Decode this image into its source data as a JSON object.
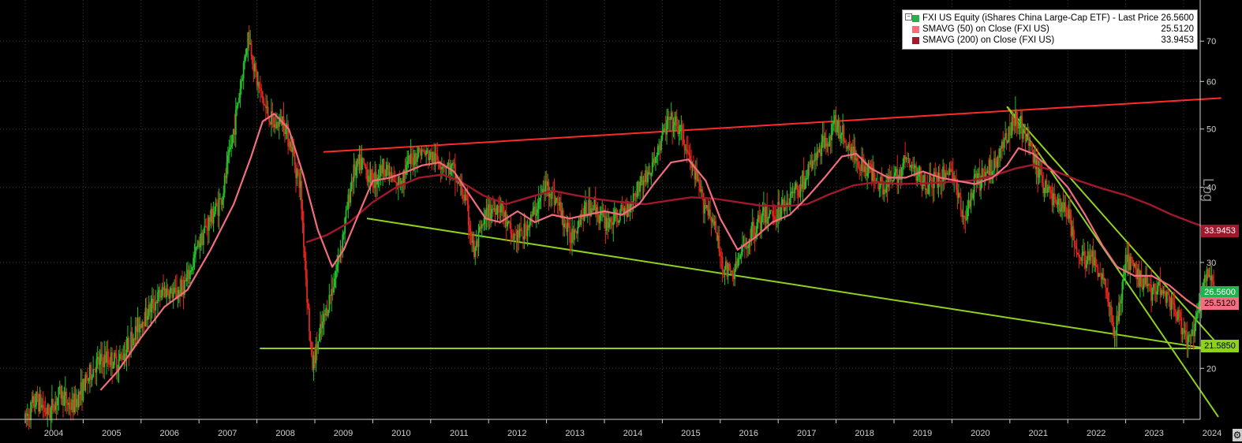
{
  "chart_data": {
    "type": "candlestick",
    "scale": "log",
    "ylim": [
      16.5,
      80
    ],
    "y_ticks": [
      20,
      30,
      40,
      50,
      60,
      70
    ],
    "y_tick_labels": [
      "20",
      "30",
      "40",
      "50",
      "60",
      "70"
    ],
    "ylabel": "Log",
    "x_ticks": [
      "2004",
      "2005",
      "2006",
      "2007",
      "2008",
      "2009",
      "2010",
      "2011",
      "2012",
      "2013",
      "2014",
      "2015",
      "2016",
      "2017",
      "2018",
      "2019",
      "2020",
      "2021",
      "2022",
      "2023",
      "2024"
    ],
    "xlim": [
      2004.0,
      2024.65
    ],
    "grid": true,
    "legend_position": "top-right",
    "legend": [
      {
        "label": "FXI US Equity (iShares China Large-Cap ETF) - Last Price",
        "value": "26.5600",
        "color": "#22b14c"
      },
      {
        "label": "SMAVG (50)  on Close (FXI US)",
        "value": "25.5120",
        "color": "#f26d7d"
      },
      {
        "label": "SMAVG (200)  on Close (FXI US)",
        "value": "33.9453",
        "color": "#a0182b"
      }
    ],
    "price_series": {
      "name": "FXI US Equity (iShares China Large-Cap ETF) - Last Price",
      "points": [
        [
          2004.0,
          16.5
        ],
        [
          2004.2,
          17.8
        ],
        [
          2004.4,
          16.8
        ],
        [
          2004.6,
          18.2
        ],
        [
          2004.8,
          17.2
        ],
        [
          2005.0,
          18.6
        ],
        [
          2005.2,
          20.2
        ],
        [
          2005.4,
          20.8
        ],
        [
          2005.6,
          20.5
        ],
        [
          2005.8,
          22.0
        ],
        [
          2006.0,
          24.0
        ],
        [
          2006.2,
          25.5
        ],
        [
          2006.4,
          27.0
        ],
        [
          2006.6,
          26.5
        ],
        [
          2006.8,
          28.0
        ],
        [
          2007.0,
          32.5
        ],
        [
          2007.2,
          35.5
        ],
        [
          2007.4,
          38.5
        ],
        [
          2007.6,
          50.0
        ],
        [
          2007.75,
          62.0
        ],
        [
          2007.85,
          72.0
        ],
        [
          2008.0,
          60.0
        ],
        [
          2008.15,
          54.0
        ],
        [
          2008.3,
          50.5
        ],
        [
          2008.45,
          52.0
        ],
        [
          2008.6,
          46.5
        ],
        [
          2008.75,
          40.0
        ],
        [
          2008.85,
          28.0
        ],
        [
          2008.95,
          20.0
        ],
        [
          2009.05,
          22.0
        ],
        [
          2009.2,
          25.0
        ],
        [
          2009.35,
          28.5
        ],
        [
          2009.5,
          34.0
        ],
        [
          2009.65,
          42.0
        ],
        [
          2009.8,
          44.0
        ],
        [
          2010.0,
          41.0
        ],
        [
          2010.2,
          43.5
        ],
        [
          2010.4,
          40.0
        ],
        [
          2010.6,
          43.5
        ],
        [
          2010.8,
          46.0
        ],
        [
          2011.0,
          45.0
        ],
        [
          2011.2,
          44.0
        ],
        [
          2011.4,
          42.5
        ],
        [
          2011.6,
          38.0
        ],
        [
          2011.75,
          31.0
        ],
        [
          2011.9,
          34.5
        ],
        [
          2012.0,
          36.5
        ],
        [
          2012.2,
          37.5
        ],
        [
          2012.4,
          33.0
        ],
        [
          2012.6,
          33.5
        ],
        [
          2012.8,
          36.5
        ],
        [
          2013.0,
          40.5
        ],
        [
          2013.2,
          37.5
        ],
        [
          2013.4,
          33.0
        ],
        [
          2013.6,
          36.0
        ],
        [
          2013.8,
          37.5
        ],
        [
          2014.0,
          35.0
        ],
        [
          2014.2,
          35.5
        ],
        [
          2014.4,
          37.0
        ],
        [
          2014.6,
          40.5
        ],
        [
          2014.8,
          42.5
        ],
        [
          2015.0,
          48.5
        ],
        [
          2015.1,
          51.5
        ],
        [
          2015.3,
          50.0
        ],
        [
          2015.5,
          43.5
        ],
        [
          2015.7,
          38.0
        ],
        [
          2015.85,
          36.0
        ],
        [
          2016.05,
          29.5
        ],
        [
          2016.2,
          28.5
        ],
        [
          2016.4,
          31.5
        ],
        [
          2016.6,
          34.5
        ],
        [
          2016.8,
          36.0
        ],
        [
          2017.0,
          36.5
        ],
        [
          2017.2,
          38.5
        ],
        [
          2017.4,
          40.5
        ],
        [
          2017.6,
          44.0
        ],
        [
          2017.8,
          47.5
        ],
        [
          2018.0,
          51.0
        ],
        [
          2018.2,
          47.0
        ],
        [
          2018.4,
          44.0
        ],
        [
          2018.6,
          42.5
        ],
        [
          2018.8,
          40.5
        ],
        [
          2019.0,
          41.0
        ],
        [
          2019.2,
          44.5
        ],
        [
          2019.4,
          42.0
        ],
        [
          2019.6,
          40.5
        ],
        [
          2019.8,
          41.5
        ],
        [
          2020.0,
          43.0
        ],
        [
          2020.2,
          35.0
        ],
        [
          2020.4,
          40.5
        ],
        [
          2020.6,
          42.0
        ],
        [
          2020.8,
          45.0
        ],
        [
          2021.0,
          50.0
        ],
        [
          2021.1,
          53.0
        ],
        [
          2021.3,
          48.0
        ],
        [
          2021.5,
          42.0
        ],
        [
          2021.7,
          39.0
        ],
        [
          2021.9,
          37.0
        ],
        [
          2022.0,
          36.5
        ],
        [
          2022.1,
          33.0
        ],
        [
          2022.2,
          30.0
        ],
        [
          2022.35,
          31.0
        ],
        [
          2022.5,
          29.5
        ],
        [
          2022.65,
          28.0
        ],
        [
          2022.8,
          22.5
        ],
        [
          2022.9,
          25.5
        ],
        [
          2023.0,
          30.5
        ],
        [
          2023.15,
          29.0
        ],
        [
          2023.3,
          28.0
        ],
        [
          2023.45,
          27.0
        ],
        [
          2023.6,
          27.5
        ],
        [
          2023.75,
          26.0
        ],
        [
          2023.9,
          24.5
        ],
        [
          2024.05,
          22.0
        ],
        [
          2024.2,
          23.5
        ],
        [
          2024.35,
          27.5
        ],
        [
          2024.45,
          28.5
        ],
        [
          2024.55,
          26.56
        ]
      ]
    },
    "sma50_series": {
      "name": "SMAVG (50)  on Close (FXI US)",
      "points": [
        [
          2005.3,
          18.4
        ],
        [
          2005.6,
          19.8
        ],
        [
          2006.0,
          22.5
        ],
        [
          2006.4,
          25.3
        ],
        [
          2006.8,
          27.0
        ],
        [
          2007.2,
          31.5
        ],
        [
          2007.6,
          37.5
        ],
        [
          2007.9,
          45.0
        ],
        [
          2008.1,
          51.5
        ],
        [
          2008.3,
          53.0
        ],
        [
          2008.55,
          50.0
        ],
        [
          2008.8,
          42.0
        ],
        [
          2009.05,
          34.0
        ],
        [
          2009.3,
          29.5
        ],
        [
          2009.5,
          31.5
        ],
        [
          2009.75,
          36.0
        ],
        [
          2010.0,
          41.0
        ],
        [
          2010.3,
          41.5
        ],
        [
          2010.6,
          42.5
        ],
        [
          2010.85,
          43.5
        ],
        [
          2011.15,
          44.0
        ],
        [
          2011.4,
          42.5
        ],
        [
          2011.7,
          38.5
        ],
        [
          2011.95,
          35.5
        ],
        [
          2012.2,
          35.0
        ],
        [
          2012.5,
          36.5
        ],
        [
          2012.8,
          35.0
        ],
        [
          2013.1,
          36.0
        ],
        [
          2013.4,
          35.5
        ],
        [
          2013.7,
          36.0
        ],
        [
          2014.0,
          36.5
        ],
        [
          2014.3,
          36.0
        ],
        [
          2014.6,
          37.5
        ],
        [
          2014.85,
          40.5
        ],
        [
          2015.15,
          44.0
        ],
        [
          2015.45,
          44.5
        ],
        [
          2015.75,
          41.0
        ],
        [
          2016.0,
          35.5
        ],
        [
          2016.3,
          31.5
        ],
        [
          2016.6,
          33.0
        ],
        [
          2016.9,
          35.0
        ],
        [
          2017.2,
          36.0
        ],
        [
          2017.5,
          38.5
        ],
        [
          2017.8,
          41.5
        ],
        [
          2018.1,
          45.0
        ],
        [
          2018.35,
          45.5
        ],
        [
          2018.6,
          43.0
        ],
        [
          2018.9,
          41.5
        ],
        [
          2019.2,
          41.5
        ],
        [
          2019.5,
          42.5
        ],
        [
          2019.8,
          41.5
        ],
        [
          2020.1,
          41.0
        ],
        [
          2020.4,
          40.5
        ],
        [
          2020.7,
          41.5
        ],
        [
          2020.95,
          43.5
        ],
        [
          2021.15,
          46.5
        ],
        [
          2021.4,
          45.5
        ],
        [
          2021.7,
          43.0
        ],
        [
          2022.0,
          40.0
        ],
        [
          2022.3,
          36.0
        ],
        [
          2022.6,
          32.0
        ],
        [
          2022.85,
          29.5
        ],
        [
          2023.15,
          28.5
        ],
        [
          2023.45,
          28.5
        ],
        [
          2023.75,
          27.5
        ],
        [
          2024.05,
          26.0
        ],
        [
          2024.25,
          25.2
        ],
        [
          2024.45,
          25.4
        ],
        [
          2024.55,
          25.512
        ]
      ]
    },
    "sma200_series": {
      "name": "SMAVG (200)  on Close (FXI US)",
      "points": [
        [
          2008.85,
          32.4
        ],
        [
          2009.2,
          33.3
        ],
        [
          2009.6,
          35.0
        ],
        [
          2010.0,
          37.8
        ],
        [
          2010.4,
          40.0
        ],
        [
          2010.8,
          41.5
        ],
        [
          2011.2,
          42.0
        ],
        [
          2011.5,
          41.0
        ],
        [
          2011.9,
          38.8
        ],
        [
          2012.3,
          37.5
        ],
        [
          2012.7,
          38.5
        ],
        [
          2013.1,
          39.5
        ],
        [
          2013.5,
          38.8
        ],
        [
          2013.9,
          38.2
        ],
        [
          2014.3,
          37.8
        ],
        [
          2014.7,
          37.5
        ],
        [
          2015.1,
          38.0
        ],
        [
          2015.5,
          38.5
        ],
        [
          2015.9,
          38.3
        ],
        [
          2016.3,
          37.8
        ],
        [
          2016.7,
          37.3
        ],
        [
          2017.1,
          37.2
        ],
        [
          2017.5,
          37.5
        ],
        [
          2017.9,
          39.0
        ],
        [
          2018.3,
          40.3
        ],
        [
          2018.7,
          40.8
        ],
        [
          2019.1,
          40.5
        ],
        [
          2019.5,
          40.6
        ],
        [
          2019.9,
          40.8
        ],
        [
          2020.3,
          41.0
        ],
        [
          2020.7,
          41.8
        ],
        [
          2021.1,
          43.0
        ],
        [
          2021.4,
          43.6
        ],
        [
          2021.8,
          42.5
        ],
        [
          2022.2,
          41.0
        ],
        [
          2022.6,
          39.8
        ],
        [
          2023.0,
          38.8
        ],
        [
          2023.4,
          37.5
        ],
        [
          2023.8,
          36.0
        ],
        [
          2024.2,
          34.8
        ],
        [
          2024.55,
          33.9453
        ]
      ]
    },
    "trendlines": [
      {
        "color": "#ff2a2a",
        "from": [
          2009.15,
          45.8
        ],
        "to": [
          2024.65,
          56.3
        ]
      },
      {
        "color": "#8fd21e",
        "from": [
          2009.9,
          35.5
        ],
        "to": [
          2024.65,
          21.4
        ]
      },
      {
        "color": "#8fd21e",
        "from": [
          2008.05,
          21.585
        ],
        "to": [
          2024.65,
          21.585
        ]
      },
      {
        "color": "#8fd21e",
        "from": [
          2020.95,
          54.5
        ],
        "to": [
          2024.65,
          21.6
        ]
      },
      {
        "color": "#8fd21e",
        "from": [
          2020.95,
          54.5
        ],
        "to": [
          2024.6,
          16.6
        ]
      }
    ],
    "right_tags": [
      {
        "value": "33.9453",
        "bg": "#a0182b",
        "fg": "#ffffff"
      },
      {
        "value": "26.5600",
        "bg": "#22b14c",
        "fg": "#ffffff"
      },
      {
        "value": "25.5120",
        "bg": "#f26d7d",
        "fg": "#000000"
      },
      {
        "value": "21.5850",
        "bg": "#8fd21e",
        "fg": "#000000"
      }
    ]
  }
}
